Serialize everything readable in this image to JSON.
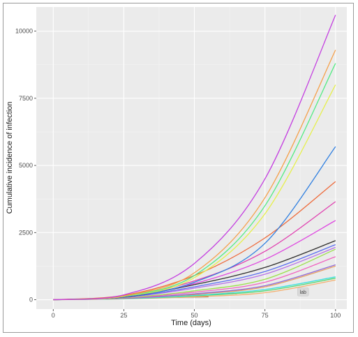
{
  "chart_data": {
    "type": "line",
    "title": "",
    "xlabel": "Time (days)",
    "ylabel": "Cumulative incidence of infection",
    "xlim": [
      -6,
      104
    ],
    "ylim": [
      -350,
      10900
    ],
    "xticks": [
      0,
      25,
      50,
      75,
      100
    ],
    "yticks": [
      0,
      2500,
      5000,
      7500,
      10000
    ],
    "xtick_labels": [
      "0",
      "25",
      "50",
      "75",
      "100"
    ],
    "ytick_labels": [
      "0",
      "2500",
      "5000",
      "7500",
      "10000"
    ],
    "grid": true,
    "panel_color": "#ebebeb",
    "grid_color": "#ffffff",
    "legend": "none",
    "annotation": {
      "text": "lab",
      "x": 88.5,
      "y": 290
    },
    "series": [
      {
        "color": "#c43ee0",
        "x": [
          0,
          25,
          50,
          75,
          100
        ],
        "y": [
          0,
          180,
          1350,
          4500,
          10600
        ]
      },
      {
        "color": "#f5a04a",
        "x": [
          0,
          25,
          50,
          75,
          100
        ],
        "y": [
          0,
          140,
          1000,
          3800,
          9300
        ]
      },
      {
        "color": "#52eb82",
        "x": [
          0,
          25,
          50,
          75,
          100
        ],
        "y": [
          0,
          130,
          900,
          3500,
          8800
        ]
      },
      {
        "color": "#e6f04a",
        "x": [
          0,
          25,
          50,
          75,
          100
        ],
        "y": [
          0,
          120,
          820,
          3200,
          8000
        ]
      },
      {
        "color": "#2f7fe0",
        "x": [
          0,
          25,
          50,
          75,
          100
        ],
        "y": [
          0,
          110,
          650,
          2100,
          5700
        ]
      },
      {
        "color": "#ee6a3a",
        "x": [
          0,
          25,
          50,
          75,
          100
        ],
        "y": [
          0,
          160,
          900,
          2300,
          4400
        ]
      },
      {
        "color": "#e040b0",
        "x": [
          0,
          25,
          50,
          75,
          100
        ],
        "y": [
          0,
          120,
          700,
          1800,
          3650
        ]
      },
      {
        "color": "#de49e0",
        "x": [
          0,
          25,
          50,
          75,
          100
        ],
        "y": [
          0,
          110,
          600,
          1500,
          2950
        ]
      },
      {
        "color": "#2f2f2f",
        "x": [
          0,
          25,
          50,
          75,
          100
        ],
        "y": [
          0,
          100,
          560,
          1200,
          2200
        ]
      },
      {
        "color": "#5a6ef0",
        "x": [
          0,
          25,
          50,
          75,
          100
        ],
        "y": [
          0,
          90,
          480,
          1050,
          2050
        ]
      },
      {
        "color": "#b56ee8",
        "x": [
          0,
          25,
          50,
          75,
          100
        ],
        "y": [
          0,
          80,
          430,
          950,
          1950
        ]
      },
      {
        "color": "#9be04a",
        "x": [
          0,
          25,
          50,
          75,
          100
        ],
        "y": [
          0,
          70,
          330,
          760,
          1880
        ]
      },
      {
        "color": "#f064c0",
        "x": [
          0,
          25,
          50,
          75,
          100
        ],
        "y": [
          0,
          60,
          280,
          650,
          1600
        ]
      },
      {
        "color": "#8f6ad8",
        "x": [
          0,
          25,
          50,
          75,
          100
        ],
        "y": [
          0,
          50,
          220,
          520,
          1300
        ]
      },
      {
        "color": "#e8a060",
        "x": [
          0,
          25,
          50,
          75,
          100
        ],
        "y": [
          0,
          50,
          200,
          480,
          1250
        ]
      },
      {
        "color": "#3ee0e0",
        "x": [
          0,
          25,
          50,
          75,
          100
        ],
        "y": [
          0,
          40,
          160,
          380,
          850
        ]
      },
      {
        "color": "#58d870",
        "x": [
          0,
          25,
          50,
          75,
          100
        ],
        "y": [
          0,
          35,
          140,
          330,
          800
        ]
      },
      {
        "color": "#f5b070",
        "x": [
          0,
          25,
          50,
          75,
          100
        ],
        "y": [
          0,
          30,
          110,
          260,
          730
        ]
      }
    ],
    "short_segments": [
      {
        "color": "#e04040",
        "x": [
          28,
          65
        ],
        "y": [
          80,
          230
        ]
      },
      {
        "color": "#9a6a3a",
        "x": [
          22,
          55
        ],
        "y": [
          40,
          110
        ]
      }
    ]
  }
}
